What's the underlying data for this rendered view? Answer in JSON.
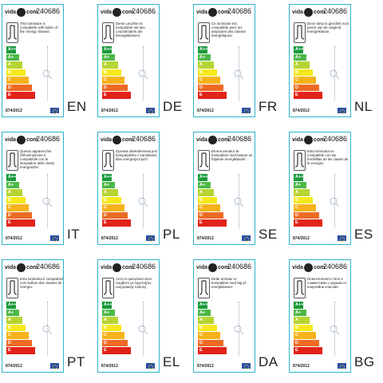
{
  "code": "240686",
  "regulation": "874/2012",
  "energy_classes": [
    "A++",
    "A+",
    "A",
    "B",
    "C",
    "D",
    "E"
  ],
  "class_colors": [
    "#1a9a3c",
    "#4db848",
    "#b6d432",
    "#f5e81c",
    "#f6b21b",
    "#ec6a24",
    "#e2231a"
  ],
  "labels": [
    {
      "lang": "EN",
      "text": "This luminaire is compatible with bulbs of the energy classes:"
    },
    {
      "lang": "DE",
      "text": "Diese Leuchte ist kompatibel mit den Leuchtmitteln der Energieklassen:"
    },
    {
      "lang": "FR",
      "text": "Ce luminaire est compatible avec les ampoules des classes énergétiques:"
    },
    {
      "lang": "NL",
      "text": "Deze lamp is geschikt voor peren van de volgend energieklasse:"
    },
    {
      "lang": "IT",
      "text": "Questo apparecchio d'illuminazione è compatibile con le lampadine delle classi energetiche:"
    },
    {
      "lang": "PL",
      "text": "Oprawa oświetleniowa jest kompatybilna z żarówkami klas energetycznych:"
    },
    {
      "lang": "SE",
      "text": "Denna armatur är kompatibel med lampor av följande energiklasser:"
    },
    {
      "lang": "ES",
      "text": "Esta luminaria es compatible con las bombillas de las clases de la energía:"
    },
    {
      "lang": "PT",
      "text": "Esta luminária é compatível com bulbos das classes de energia:"
    },
    {
      "lang": "EL",
      "text": "Αυτό το φωτιστικό είναι συμβατό με λαμπτήρες ενεργειακής κλάσης:"
    },
    {
      "lang": "DA",
      "text": "Dette armatur er kompatibel med lag af energiklasser:"
    },
    {
      "lang": "BG",
      "text": "Осветителното тяло е съвместимо с крушки от енергийни класове:"
    }
  ]
}
